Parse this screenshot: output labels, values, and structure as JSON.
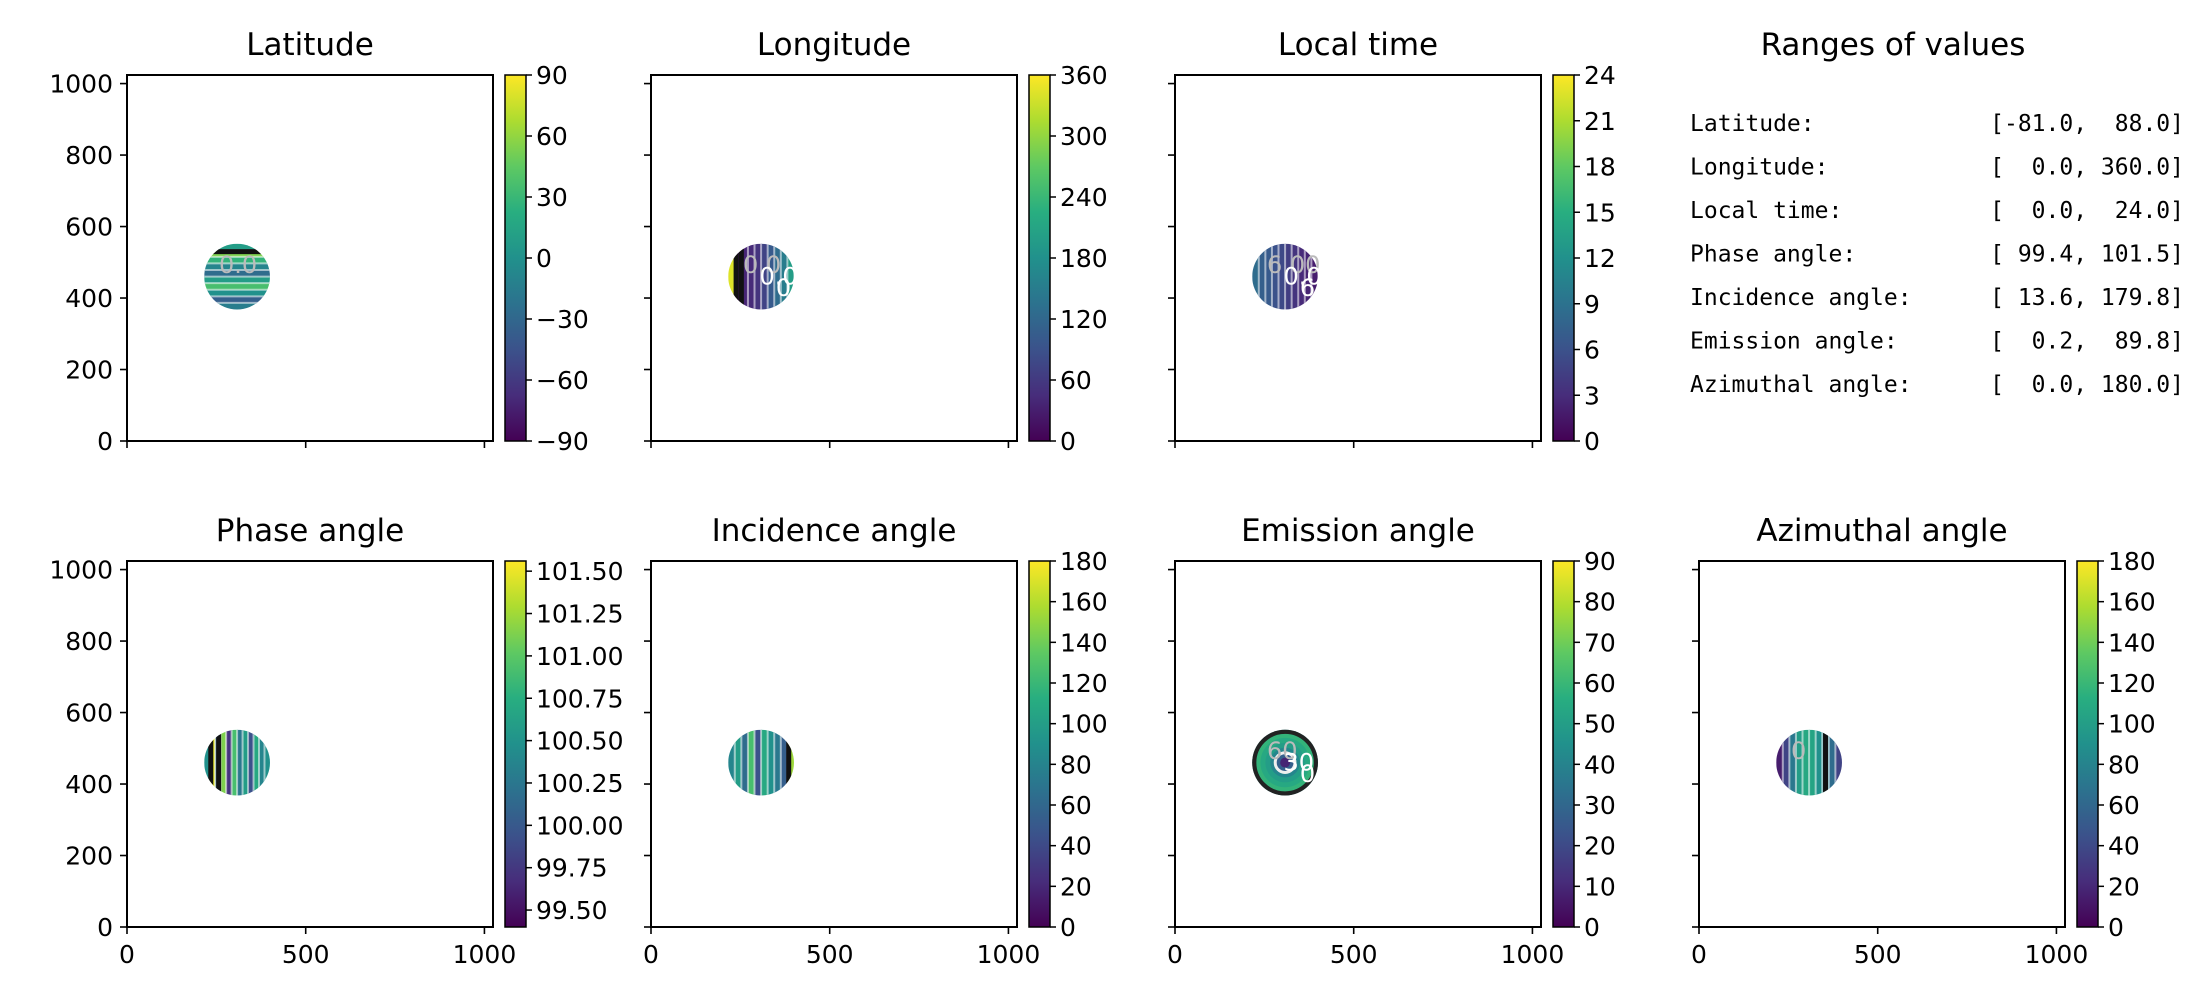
{
  "figure": {
    "ranges_title": "Ranges of values",
    "ranges": [
      {
        "label": "Latitude:",
        "value": "[-81.0,  88.0]"
      },
      {
        "label": "Longitude:",
        "value": "[  0.0, 360.0]"
      },
      {
        "label": "Local time:",
        "value": "[  0.0,  24.0]"
      },
      {
        "label": "Phase angle:",
        "value": "[ 99.4, 101.5]"
      },
      {
        "label": "Incidence angle:",
        "value": "[ 13.6, 179.8]"
      },
      {
        "label": "Emission angle:",
        "value": "[  0.2,  89.8]"
      },
      {
        "label": "Azimuthal angle:",
        "value": "[  0.0, 180.0]"
      }
    ]
  },
  "chart_data": [
    {
      "type": "heatmap",
      "title": "Latitude",
      "colormap": "viridis",
      "xlim": [
        0,
        1024
      ],
      "ylim": [
        0,
        1024
      ],
      "xticks": [
        "0",
        "500",
        "1000"
      ],
      "yticks": [
        "0",
        "200",
        "400",
        "600",
        "800",
        "1000"
      ],
      "colorbar": {
        "range": [
          -90,
          90
        ],
        "ticks": [
          "90",
          "60",
          "30",
          "0",
          "−30",
          "−60",
          "−90"
        ]
      },
      "disk": {
        "center": [
          308,
          460
        ],
        "radius": 92
      },
      "contour_labels": [
        "0.0"
      ]
    },
    {
      "type": "heatmap",
      "title": "Longitude",
      "colormap": "viridis",
      "xlim": [
        0,
        1024
      ],
      "ylim": [
        0,
        1024
      ],
      "xticks": [
        "0",
        "500",
        "1000"
      ],
      "yticks": [],
      "colorbar": {
        "range": [
          0,
          360
        ],
        "ticks": [
          "360",
          "300",
          "240",
          "180",
          "120",
          "60",
          "0"
        ]
      },
      "disk": {
        "center": [
          308,
          460
        ],
        "radius": 92
      },
      "contour_labels": [
        "0.0",
        "0.0",
        "0.0"
      ]
    },
    {
      "type": "heatmap",
      "title": "Local time",
      "colormap": "viridis",
      "xlim": [
        0,
        1024
      ],
      "ylim": [
        0,
        1024
      ],
      "xticks": [
        "0",
        "500",
        "1000"
      ],
      "yticks": [],
      "colorbar": {
        "range": [
          0,
          24
        ],
        "ticks": [
          "24",
          "21",
          "18",
          "15",
          "12",
          "9",
          "6",
          "3",
          "0"
        ]
      },
      "disk": {
        "center": [
          308,
          460
        ],
        "radius": 92
      },
      "contour_labels": [
        "6.00",
        "0.0",
        "6.0"
      ]
    },
    {
      "type": "heatmap",
      "title": "Phase angle",
      "colormap": "viridis",
      "xlim": [
        0,
        1024
      ],
      "ylim": [
        0,
        1024
      ],
      "xticks": [
        "0",
        "500",
        "1000"
      ],
      "yticks": [
        "0",
        "200",
        "400",
        "600",
        "800",
        "1000"
      ],
      "colorbar": {
        "range": [
          99.4,
          101.56
        ],
        "ticks": [
          "101.50",
          "101.25",
          "101.00",
          "100.75",
          "100.50",
          "100.25",
          "100.00",
          "99.75",
          "99.50"
        ]
      },
      "disk": {
        "center": [
          308,
          460
        ],
        "radius": 92
      },
      "contour_labels": []
    },
    {
      "type": "heatmap",
      "title": "Incidence angle",
      "colormap": "viridis",
      "xlim": [
        0,
        1024
      ],
      "ylim": [
        0,
        1024
      ],
      "xticks": [
        "0",
        "500",
        "1000"
      ],
      "yticks": [],
      "colorbar": {
        "range": [
          0,
          180
        ],
        "ticks": [
          "180",
          "160",
          "140",
          "120",
          "100",
          "80",
          "60",
          "40",
          "20",
          "0"
        ]
      },
      "disk": {
        "center": [
          308,
          460
        ],
        "radius": 92
      },
      "contour_labels": []
    },
    {
      "type": "heatmap",
      "title": "Emission angle",
      "colormap": "viridis",
      "xlim": [
        0,
        1024
      ],
      "ylim": [
        0,
        1024
      ],
      "xticks": [
        "0",
        "500",
        "1000"
      ],
      "yticks": [],
      "colorbar": {
        "range": [
          0,
          90
        ],
        "ticks": [
          "90",
          "80",
          "70",
          "60",
          "50",
          "40",
          "30",
          "20",
          "10",
          "0"
        ]
      },
      "disk": {
        "center": [
          308,
          460
        ],
        "radius": 92
      },
      "contour_labels": [
        "60",
        "30",
        "0"
      ]
    },
    {
      "type": "heatmap",
      "title": "Azimuthal angle",
      "colormap": "viridis",
      "xlim": [
        0,
        1024
      ],
      "ylim": [
        0,
        1024
      ],
      "xticks": [
        "0",
        "500",
        "1000"
      ],
      "yticks": [],
      "colorbar": {
        "range": [
          0,
          180
        ],
        "ticks": [
          "180",
          "160",
          "140",
          "120",
          "100",
          "80",
          "60",
          "40",
          "20",
          "0"
        ]
      },
      "disk": {
        "center": [
          308,
          460
        ],
        "radius": 92
      },
      "contour_labels": [
        "0"
      ]
    }
  ]
}
